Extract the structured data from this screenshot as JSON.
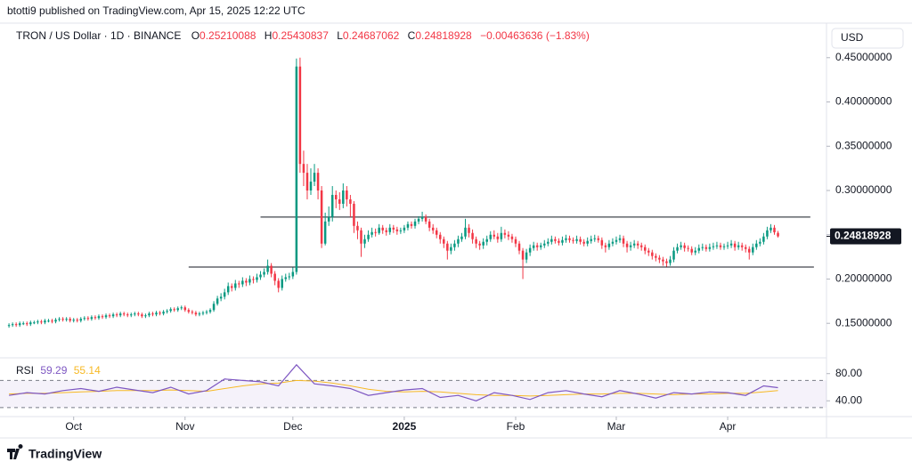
{
  "chart_data": {
    "type": "candlestick",
    "published": "btotti9 published on TradingView.com, Apr 15, 2025 12:22 UTC",
    "title": "TRON / US Dollar · 1D · BINANCE",
    "ohlc_labels": [
      "O",
      "H",
      "L",
      "C"
    ],
    "change": "−0.00463636 (−1.83%)",
    "currency": "USD",
    "footer": "TradingView",
    "up_color": "#089981",
    "down_color": "#f23645",
    "open": [
      0.147,
      0.148,
      0.149,
      0.148,
      0.15,
      0.15,
      0.149,
      0.151,
      0.151,
      0.152,
      0.151,
      0.153,
      0.153,
      0.152,
      0.154,
      0.155,
      0.154,
      0.155,
      0.153,
      0.154,
      0.153,
      0.155,
      0.156,
      0.155,
      0.157,
      0.156,
      0.158,
      0.157,
      0.159,
      0.158,
      0.16,
      0.159,
      0.161,
      0.16,
      0.159,
      0.16,
      0.161,
      0.16,
      0.158,
      0.159,
      0.161,
      0.16,
      0.162,
      0.161,
      0.163,
      0.164,
      0.166,
      0.165,
      0.167,
      0.168,
      0.165,
      0.163,
      0.162,
      0.16,
      0.161,
      0.162,
      0.163,
      0.165,
      0.172,
      0.178,
      0.18,
      0.185,
      0.192,
      0.19,
      0.195,
      0.194,
      0.198,
      0.196,
      0.2,
      0.199,
      0.202,
      0.205,
      0.208,
      0.215,
      0.206,
      0.198,
      0.19,
      0.2,
      0.202,
      0.203,
      0.208,
      0.44,
      0.33,
      0.32,
      0.3,
      0.31,
      0.32,
      0.3,
      0.24,
      0.265,
      0.27,
      0.295,
      0.29,
      0.285,
      0.3,
      0.29,
      0.285,
      0.26,
      0.255,
      0.24,
      0.245,
      0.25,
      0.253,
      0.252,
      0.258,
      0.255,
      0.253,
      0.258,
      0.256,
      0.254,
      0.255,
      0.258,
      0.262,
      0.26,
      0.265,
      0.268,
      0.27,
      0.265,
      0.258,
      0.255,
      0.25,
      0.245,
      0.24,
      0.232,
      0.236,
      0.24,
      0.245,
      0.248,
      0.258,
      0.252,
      0.245,
      0.24,
      0.238,
      0.242,
      0.245,
      0.25,
      0.248,
      0.245,
      0.252,
      0.25,
      0.248,
      0.245,
      0.24,
      0.232,
      0.222,
      0.23,
      0.235,
      0.238,
      0.236,
      0.238,
      0.24,
      0.242,
      0.245,
      0.243,
      0.241,
      0.244,
      0.246,
      0.244,
      0.243,
      0.245,
      0.242,
      0.24,
      0.243,
      0.245,
      0.246,
      0.244,
      0.238,
      0.236,
      0.24,
      0.242,
      0.244,
      0.246,
      0.24,
      0.236,
      0.238,
      0.24,
      0.238,
      0.236,
      0.232,
      0.23,
      0.226,
      0.224,
      0.222,
      0.22,
      0.218,
      0.222,
      0.232,
      0.236,
      0.238,
      0.235,
      0.234,
      0.23,
      0.232,
      0.235,
      0.236,
      0.234,
      0.236,
      0.237,
      0.238,
      0.236,
      0.237,
      0.238,
      0.24,
      0.236,
      0.238,
      0.236,
      0.234,
      0.23,
      0.236,
      0.24,
      0.242,
      0.248,
      0.255,
      0.258,
      0.25210088
    ],
    "high": [
      0.15,
      0.151,
      0.151,
      0.152,
      0.152,
      0.152,
      0.153,
      0.153,
      0.154,
      0.154,
      0.155,
      0.155,
      0.155,
      0.156,
      0.157,
      0.157,
      0.157,
      0.157,
      0.156,
      0.156,
      0.157,
      0.158,
      0.158,
      0.159,
      0.159,
      0.16,
      0.16,
      0.161,
      0.161,
      0.162,
      0.162,
      0.163,
      0.163,
      0.162,
      0.162,
      0.163,
      0.163,
      0.162,
      0.161,
      0.163,
      0.163,
      0.164,
      0.164,
      0.165,
      0.166,
      0.168,
      0.168,
      0.169,
      0.17,
      0.17,
      0.167,
      0.165,
      0.164,
      0.163,
      0.164,
      0.165,
      0.167,
      0.175,
      0.181,
      0.184,
      0.189,
      0.196,
      0.195,
      0.199,
      0.198,
      0.202,
      0.201,
      0.204,
      0.203,
      0.206,
      0.209,
      0.212,
      0.222,
      0.218,
      0.209,
      0.201,
      0.204,
      0.206,
      0.207,
      0.213,
      0.449,
      0.45,
      0.345,
      0.33,
      0.325,
      0.33,
      0.325,
      0.305,
      0.275,
      0.282,
      0.305,
      0.3,
      0.298,
      0.308,
      0.305,
      0.295,
      0.288,
      0.265,
      0.258,
      0.25,
      0.255,
      0.258,
      0.257,
      0.262,
      0.261,
      0.258,
      0.262,
      0.261,
      0.259,
      0.258,
      0.261,
      0.265,
      0.265,
      0.268,
      0.271,
      0.276,
      0.273,
      0.268,
      0.262,
      0.258,
      0.253,
      0.248,
      0.243,
      0.24,
      0.244,
      0.249,
      0.252,
      0.268,
      0.262,
      0.256,
      0.248,
      0.243,
      0.246,
      0.249,
      0.254,
      0.255,
      0.252,
      0.259,
      0.256,
      0.254,
      0.251,
      0.248,
      0.243,
      0.235,
      0.234,
      0.239,
      0.242,
      0.241,
      0.241,
      0.244,
      0.246,
      0.249,
      0.248,
      0.246,
      0.248,
      0.25,
      0.249,
      0.247,
      0.249,
      0.248,
      0.245,
      0.247,
      0.249,
      0.25,
      0.249,
      0.247,
      0.241,
      0.244,
      0.246,
      0.248,
      0.25,
      0.249,
      0.243,
      0.242,
      0.244,
      0.243,
      0.241,
      0.239,
      0.235,
      0.233,
      0.229,
      0.227,
      0.225,
      0.223,
      0.226,
      0.236,
      0.24,
      0.242,
      0.241,
      0.238,
      0.237,
      0.236,
      0.239,
      0.24,
      0.239,
      0.24,
      0.241,
      0.242,
      0.241,
      0.24,
      0.242,
      0.244,
      0.243,
      0.242,
      0.241,
      0.239,
      0.237,
      0.24,
      0.244,
      0.246,
      0.252,
      0.259,
      0.262,
      0.261,
      0.25430837
    ],
    "low": [
      0.145,
      0.146,
      0.146,
      0.146,
      0.148,
      0.147,
      0.147,
      0.149,
      0.149,
      0.149,
      0.149,
      0.151,
      0.15,
      0.15,
      0.152,
      0.152,
      0.152,
      0.151,
      0.151,
      0.151,
      0.151,
      0.153,
      0.153,
      0.153,
      0.154,
      0.154,
      0.155,
      0.155,
      0.156,
      0.156,
      0.157,
      0.157,
      0.158,
      0.157,
      0.157,
      0.158,
      0.158,
      0.156,
      0.156,
      0.157,
      0.158,
      0.158,
      0.159,
      0.159,
      0.161,
      0.162,
      0.163,
      0.163,
      0.165,
      0.163,
      0.161,
      0.16,
      0.158,
      0.158,
      0.159,
      0.16,
      0.161,
      0.163,
      0.17,
      0.175,
      0.177,
      0.182,
      0.186,
      0.187,
      0.19,
      0.191,
      0.192,
      0.193,
      0.195,
      0.196,
      0.199,
      0.202,
      0.205,
      0.202,
      0.193,
      0.185,
      0.187,
      0.197,
      0.199,
      0.2,
      0.205,
      0.32,
      0.305,
      0.29,
      0.295,
      0.305,
      0.29,
      0.235,
      0.238,
      0.26,
      0.265,
      0.28,
      0.278,
      0.28,
      0.282,
      0.27,
      0.252,
      0.245,
      0.225,
      0.235,
      0.242,
      0.247,
      0.248,
      0.25,
      0.251,
      0.249,
      0.25,
      0.252,
      0.25,
      0.251,
      0.252,
      0.255,
      0.257,
      0.257,
      0.262,
      0.265,
      0.262,
      0.254,
      0.251,
      0.246,
      0.24,
      0.235,
      0.222,
      0.228,
      0.232,
      0.236,
      0.242,
      0.245,
      0.247,
      0.24,
      0.235,
      0.233,
      0.234,
      0.238,
      0.242,
      0.245,
      0.241,
      0.242,
      0.246,
      0.244,
      0.241,
      0.236,
      0.228,
      0.2,
      0.218,
      0.226,
      0.232,
      0.232,
      0.233,
      0.235,
      0.237,
      0.239,
      0.24,
      0.238,
      0.238,
      0.241,
      0.241,
      0.24,
      0.24,
      0.239,
      0.237,
      0.237,
      0.24,
      0.242,
      0.241,
      0.234,
      0.23,
      0.233,
      0.237,
      0.239,
      0.241,
      0.236,
      0.23,
      0.232,
      0.235,
      0.234,
      0.232,
      0.228,
      0.226,
      0.222,
      0.22,
      0.218,
      0.215,
      0.214,
      0.215,
      0.219,
      0.229,
      0.233,
      0.231,
      0.231,
      0.227,
      0.227,
      0.229,
      0.232,
      0.231,
      0.231,
      0.233,
      0.234,
      0.233,
      0.233,
      0.234,
      0.235,
      0.232,
      0.233,
      0.232,
      0.23,
      0.222,
      0.227,
      0.233,
      0.237,
      0.239,
      0.245,
      0.252,
      0.25,
      0.24687062
    ],
    "close": [
      0.148,
      0.149,
      0.148,
      0.15,
      0.15,
      0.149,
      0.151,
      0.151,
      0.152,
      0.151,
      0.153,
      0.153,
      0.152,
      0.154,
      0.155,
      0.154,
      0.155,
      0.153,
      0.154,
      0.153,
      0.155,
      0.156,
      0.155,
      0.157,
      0.156,
      0.158,
      0.157,
      0.159,
      0.158,
      0.16,
      0.159,
      0.161,
      0.16,
      0.159,
      0.16,
      0.161,
      0.16,
      0.158,
      0.159,
      0.161,
      0.16,
      0.162,
      0.161,
      0.163,
      0.164,
      0.166,
      0.165,
      0.167,
      0.168,
      0.165,
      0.163,
      0.162,
      0.16,
      0.161,
      0.162,
      0.163,
      0.165,
      0.172,
      0.178,
      0.18,
      0.185,
      0.192,
      0.19,
      0.195,
      0.194,
      0.198,
      0.196,
      0.2,
      0.199,
      0.202,
      0.205,
      0.208,
      0.215,
      0.206,
      0.198,
      0.19,
      0.2,
      0.202,
      0.203,
      0.208,
      0.44,
      0.33,
      0.32,
      0.3,
      0.31,
      0.32,
      0.3,
      0.24,
      0.265,
      0.27,
      0.295,
      0.29,
      0.285,
      0.3,
      0.29,
      0.285,
      0.26,
      0.255,
      0.24,
      0.245,
      0.25,
      0.253,
      0.252,
      0.258,
      0.255,
      0.253,
      0.258,
      0.256,
      0.254,
      0.255,
      0.258,
      0.262,
      0.26,
      0.265,
      0.268,
      0.27,
      0.265,
      0.258,
      0.255,
      0.25,
      0.245,
      0.24,
      0.232,
      0.236,
      0.24,
      0.245,
      0.248,
      0.258,
      0.252,
      0.245,
      0.24,
      0.238,
      0.242,
      0.245,
      0.25,
      0.248,
      0.245,
      0.252,
      0.25,
      0.248,
      0.245,
      0.24,
      0.232,
      0.222,
      0.23,
      0.235,
      0.238,
      0.236,
      0.238,
      0.24,
      0.242,
      0.245,
      0.243,
      0.241,
      0.244,
      0.246,
      0.244,
      0.243,
      0.245,
      0.242,
      0.24,
      0.243,
      0.245,
      0.246,
      0.244,
      0.238,
      0.236,
      0.24,
      0.242,
      0.244,
      0.246,
      0.24,
      0.236,
      0.238,
      0.24,
      0.238,
      0.236,
      0.232,
      0.23,
      0.226,
      0.224,
      0.222,
      0.22,
      0.218,
      0.222,
      0.232,
      0.236,
      0.238,
      0.235,
      0.234,
      0.23,
      0.232,
      0.235,
      0.236,
      0.234,
      0.236,
      0.237,
      0.238,
      0.236,
      0.237,
      0.238,
      0.24,
      0.236,
      0.238,
      0.236,
      0.234,
      0.23,
      0.236,
      0.24,
      0.242,
      0.248,
      0.255,
      0.258,
      0.2528,
      0.24818928
    ],
    "xlim": [
      -2.5,
      227.5
    ],
    "xticks": [
      {
        "value": 18,
        "label": "Oct"
      },
      {
        "value": 49,
        "label": "Nov"
      },
      {
        "value": 79,
        "label": "Dec"
      },
      {
        "value": 110,
        "label": "2025"
      },
      {
        "value": 141,
        "label": "Feb"
      },
      {
        "value": 169,
        "label": "Mar"
      },
      {
        "value": 200,
        "label": "Apr"
      }
    ],
    "ylim": [
      0.111,
      0.489
    ],
    "yticks": [
      {
        "value": 0.15,
        "label": "0.15000000"
      },
      {
        "value": 0.2,
        "label": "0.20000000"
      },
      {
        "value": 0.25,
        "label": "0.25000000"
      },
      {
        "value": 0.3,
        "label": "0.30000000"
      },
      {
        "value": 0.35,
        "label": "0.35000000"
      },
      {
        "value": 0.4,
        "label": "0.40000000"
      },
      {
        "value": 0.45,
        "label": "0.45000000"
      }
    ],
    "grid": false,
    "hlines": [
      {
        "y": 0.27,
        "x": [
          70,
          223
        ]
      },
      {
        "y": 0.2135,
        "x": [
          50,
          224
        ]
      }
    ],
    "rsi": {
      "type": "line",
      "name": "RSI",
      "color": "#7e57c2",
      "ma_color": "#f7b924",
      "x": [
        0,
        5,
        10,
        15,
        20,
        25,
        30,
        35,
        40,
        45,
        50,
        55,
        60,
        65,
        70,
        75,
        80,
        85,
        90,
        95,
        100,
        105,
        110,
        115,
        120,
        125,
        130,
        135,
        140,
        145,
        150,
        155,
        160,
        165,
        170,
        175,
        180,
        185,
        190,
        195,
        200,
        205,
        210,
        214
      ],
      "values": [
        48,
        52,
        50,
        55,
        58,
        54,
        60,
        56,
        52,
        60,
        50,
        55,
        72,
        70,
        68,
        62,
        93,
        65,
        62,
        58,
        48,
        52,
        56,
        58,
        45,
        48,
        40,
        52,
        48,
        42,
        52,
        55,
        50,
        46,
        55,
        50,
        44,
        52,
        50,
        53,
        52,
        48,
        62,
        59.29
      ],
      "ma_values": [
        50,
        51,
        51,
        52,
        53,
        54,
        55,
        55,
        55,
        56,
        55,
        54,
        58,
        62,
        65,
        66,
        70,
        69,
        66,
        62,
        57,
        54,
        53,
        54,
        53,
        51,
        49,
        48,
        48,
        47,
        48,
        49,
        50,
        50,
        51,
        51,
        50,
        49,
        50,
        50,
        51,
        51,
        53,
        55.14
      ],
      "ylim": [
        16.8,
        103.2
      ],
      "yticks": [
        {
          "value": 40,
          "label": "40.00"
        },
        {
          "value": 80,
          "label": "80.00"
        }
      ],
      "bands": [
        30,
        70
      ]
    }
  }
}
